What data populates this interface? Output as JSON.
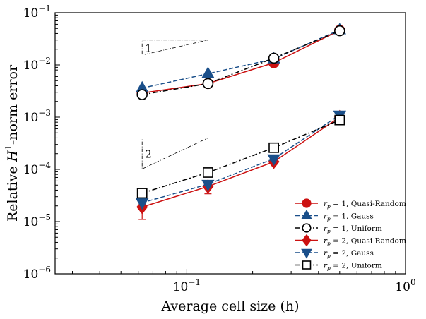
{
  "chart_data": {
    "type": "line",
    "xscale": "log",
    "yscale": "log",
    "xlim": [
      0.025,
      1
    ],
    "ylim": [
      1e-06,
      0.1
    ],
    "xlabel_prefix": "Average cell size (h)",
    "ylabel_prefix": "Relative ",
    "ylabel_var": "H",
    "ylabel_sup": "1",
    "ylabel_suffix": "-norm error",
    "x_ticks": [
      {
        "value": 0.1,
        "base": "10",
        "exp": "−1"
      },
      {
        "value": 1,
        "base": "10",
        "exp": "0"
      }
    ],
    "y_ticks": [
      {
        "value": 1e-06,
        "base": "10",
        "exp": "−6"
      },
      {
        "value": 1e-05,
        "base": "10",
        "exp": "−5"
      },
      {
        "value": 0.0001,
        "base": "10",
        "exp": "−4"
      },
      {
        "value": 0.001,
        "base": "10",
        "exp": "−3"
      },
      {
        "value": 0.01,
        "base": "10",
        "exp": "−2"
      },
      {
        "value": 0.1,
        "base": "10",
        "exp": "−1"
      }
    ],
    "legend_position": "lower-right",
    "series": [
      {
        "name": "r_p = 1, Quasi-Random",
        "rp": "1",
        "method": "Quasi-Random",
        "color": "#cc1111",
        "dash": "solid",
        "marker": "circle",
        "fill": "filled",
        "x": [
          0.0625,
          0.125,
          0.25,
          0.5
        ],
        "y": [
          0.0029,
          0.0044,
          0.011,
          0.046
        ],
        "err": [
          0.0001,
          0.0001,
          0.0005,
          0.003
        ]
      },
      {
        "name": "r_p = 1, Gauss",
        "rp": "1",
        "method": "Gauss",
        "color": "#1a4f8a",
        "dash": "dashed",
        "marker": "triangle-up",
        "fill": "filled",
        "x": [
          0.0625,
          0.125,
          0.25,
          0.5
        ],
        "y": [
          0.0036,
          0.0068,
          0.013,
          0.047
        ],
        "err": [
          0,
          0,
          0,
          0
        ]
      },
      {
        "name": "r_p = 1, Uniform",
        "rp": "1",
        "method": "Uniform",
        "color": "#000000",
        "dash": "dashdot",
        "marker": "circle",
        "fill": "open",
        "x": [
          0.0625,
          0.125,
          0.25,
          0.5
        ],
        "y": [
          0.0027,
          0.0044,
          0.0135,
          0.045
        ],
        "err": [
          0,
          0,
          0,
          0
        ]
      },
      {
        "name": "r_p = 2, Quasi-Random",
        "rp": "2",
        "method": "Quasi-Random",
        "color": "#cc1111",
        "dash": "solid",
        "marker": "diamond",
        "fill": "filled",
        "x": [
          0.0625,
          0.125,
          0.25,
          0.5
        ],
        "y": [
          1.9e-05,
          4.7e-05,
          0.00014,
          0.001
        ],
        "err": [
          8e-06,
          1.3e-05,
          1.5e-05,
          5e-05
        ]
      },
      {
        "name": "r_p = 2, Gauss",
        "rp": "2",
        "method": "Gauss",
        "color": "#1a4f8a",
        "dash": "dashed",
        "marker": "triangle-down",
        "fill": "filled",
        "x": [
          0.0625,
          0.125,
          0.25,
          0.5
        ],
        "y": [
          2.3e-05,
          5.2e-05,
          0.00016,
          0.0011
        ],
        "err": [
          0,
          0,
          0,
          0
        ]
      },
      {
        "name": "r_p = 2, Uniform",
        "rp": "2",
        "method": "Uniform",
        "color": "#000000",
        "dash": "dashdot",
        "marker": "square",
        "fill": "open",
        "x": [
          0.0625,
          0.125,
          0.25,
          0.5
        ],
        "y": [
          3.5e-05,
          8.7e-05,
          0.00026,
          0.00088
        ],
        "err": [
          0,
          0,
          0,
          0
        ]
      }
    ],
    "slope_triangles": [
      {
        "label": "1",
        "x0": 0.0625,
        "x1": 0.125,
        "y_low": 0.0155,
        "y_high": 0.03
      },
      {
        "label": "2",
        "x0": 0.0625,
        "x1": 0.125,
        "y_low": 0.000102,
        "y_high": 0.0004
      }
    ]
  }
}
